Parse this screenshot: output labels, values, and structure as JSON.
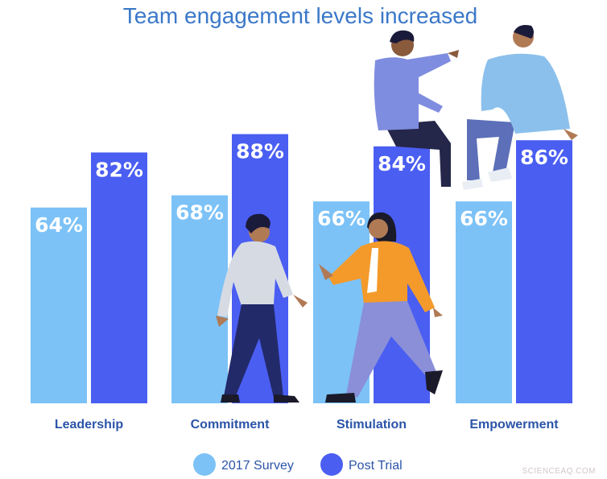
{
  "chart_data": {
    "type": "bar",
    "title": "Team engagement levels increased",
    "categories": [
      "Leadership",
      "Commitment",
      "Stimulation",
      "Empowerment"
    ],
    "series": [
      {
        "name": "2017 Survey",
        "values": [
          64,
          68,
          66,
          66
        ],
        "color": "#7cc2f7"
      },
      {
        "name": "Post Trial",
        "values": [
          82,
          88,
          84,
          86
        ],
        "color": "#4a5ef2"
      }
    ],
    "value_format": "{v}%",
    "ylim": [
      0,
      100
    ],
    "grid": false,
    "legend": "bottom-center",
    "decoration": [
      "walking-man-illustration",
      "walking-woman-illustration",
      "seated-pair-illustration"
    ]
  },
  "watermark": "SCIENCEAQ.COM"
}
